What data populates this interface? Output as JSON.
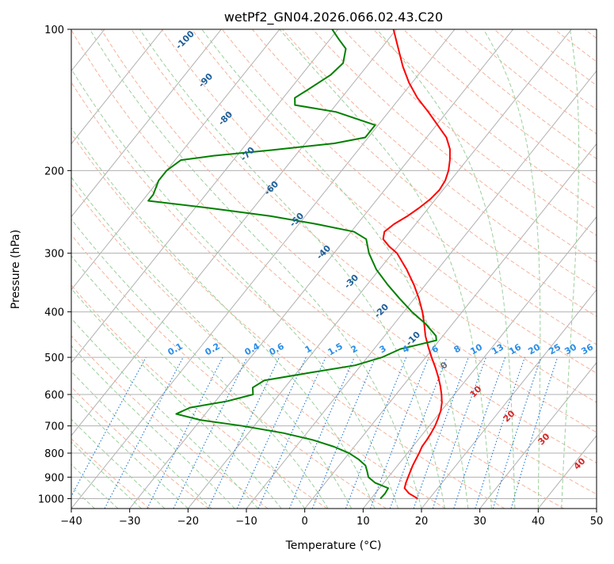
{
  "chart_data": {
    "type": "line",
    "title": "wetPf2_GN04.2026.066.02.43.C20",
    "xlabel": "Temperature (°C)",
    "ylabel": "Pressure (hPa)",
    "xlim": [
      -40,
      50
    ],
    "ylim": [
      1050,
      100
    ],
    "y_scale": "log",
    "skew": true,
    "grid": true,
    "x_ticks": [
      -40,
      -30,
      -20,
      -10,
      0,
      10,
      20,
      30,
      40,
      50
    ],
    "y_ticks": [
      1000,
      900,
      800,
      700,
      600,
      500,
      400,
      300,
      200,
      100
    ],
    "series": [
      {
        "color": "#ff0000",
        "points": [
          {
            "p": 1000,
            "t": 18.0
          },
          {
            "p": 975,
            "t": 15.8
          },
          {
            "p": 950,
            "t": 14.3
          },
          {
            "p": 925,
            "t": 13.8
          },
          {
            "p": 900,
            "t": 13.4
          },
          {
            "p": 875,
            "t": 13.0
          },
          {
            "p": 850,
            "t": 12.6
          },
          {
            "p": 825,
            "t": 12.3
          },
          {
            "p": 800,
            "t": 12.0
          },
          {
            "p": 775,
            "t": 11.6
          },
          {
            "p": 750,
            "t": 11.5
          },
          {
            "p": 725,
            "t": 11.3
          },
          {
            "p": 700,
            "t": 11.0
          },
          {
            "p": 675,
            "t": 10.5
          },
          {
            "p": 650,
            "t": 9.9
          },
          {
            "p": 625,
            "t": 9.0
          },
          {
            "p": 600,
            "t": 7.8
          },
          {
            "p": 575,
            "t": 6.4
          },
          {
            "p": 550,
            "t": 4.8
          },
          {
            "p": 525,
            "t": 3.0
          },
          {
            "p": 500,
            "t": 1.0
          },
          {
            "p": 475,
            "t": -1.0
          },
          {
            "p": 450,
            "t": -3.0
          },
          {
            "p": 425,
            "t": -4.8
          },
          {
            "p": 400,
            "t": -6.8
          },
          {
            "p": 375,
            "t": -9.2
          },
          {
            "p": 350,
            "t": -12.0
          },
          {
            "p": 325,
            "t": -15.3
          },
          {
            "p": 300,
            "t": -19.2
          },
          {
            "p": 290,
            "t": -21.5
          },
          {
            "p": 280,
            "t": -23.5
          },
          {
            "p": 270,
            "t": -24.3
          },
          {
            "p": 260,
            "t": -23.7
          },
          {
            "p": 250,
            "t": -22.5
          },
          {
            "p": 240,
            "t": -21.6
          },
          {
            "p": 230,
            "t": -20.9
          },
          {
            "p": 220,
            "t": -20.6
          },
          {
            "p": 210,
            "t": -20.9
          },
          {
            "p": 200,
            "t": -21.7
          },
          {
            "p": 190,
            "t": -22.9
          },
          {
            "p": 180,
            "t": -24.4
          },
          {
            "p": 170,
            "t": -26.6
          },
          {
            "p": 160,
            "t": -29.8
          },
          {
            "p": 150,
            "t": -33.2
          },
          {
            "p": 140,
            "t": -37.0
          },
          {
            "p": 130,
            "t": -40.5
          },
          {
            "p": 120,
            "t": -43.8
          },
          {
            "p": 110,
            "t": -47.0
          },
          {
            "p": 100,
            "t": -50.5
          }
        ]
      },
      {
        "color": "#008000",
        "points": [
          {
            "p": 1000,
            "t": 11.6
          },
          {
            "p": 975,
            "t": 11.7
          },
          {
            "p": 950,
            "t": 11.5
          },
          {
            "p": 925,
            "t": 8.5
          },
          {
            "p": 900,
            "t": 6.6
          },
          {
            "p": 875,
            "t": 5.6
          },
          {
            "p": 850,
            "t": 4.5
          },
          {
            "p": 825,
            "t": 2.5
          },
          {
            "p": 800,
            "t": 0.0
          },
          {
            "p": 775,
            "t": -3.5
          },
          {
            "p": 750,
            "t": -8.0
          },
          {
            "p": 725,
            "t": -14.0
          },
          {
            "p": 700,
            "t": -22.0
          },
          {
            "p": 680,
            "t": -30.0
          },
          {
            "p": 660,
            "t": -35.0
          },
          {
            "p": 640,
            "t": -33.5
          },
          {
            "p": 620,
            "t": -28.0
          },
          {
            "p": 600,
            "t": -24.5
          },
          {
            "p": 580,
            "t": -25.5
          },
          {
            "p": 560,
            "t": -24.5
          },
          {
            "p": 540,
            "t": -18.0
          },
          {
            "p": 520,
            "t": -11.0
          },
          {
            "p": 500,
            "t": -7.5
          },
          {
            "p": 480,
            "t": -5.5
          },
          {
            "p": 470,
            "t": -3.0
          },
          {
            "p": 460,
            "t": -0.5
          },
          {
            "p": 450,
            "t": -1.2
          },
          {
            "p": 425,
            "t": -4.5
          },
          {
            "p": 400,
            "t": -8.6
          },
          {
            "p": 375,
            "t": -12.5
          },
          {
            "p": 350,
            "t": -16.5
          },
          {
            "p": 325,
            "t": -20.5
          },
          {
            "p": 300,
            "t": -24.0
          },
          {
            "p": 280,
            "t": -26.4
          },
          {
            "p": 270,
            "t": -29.5
          },
          {
            "p": 260,
            "t": -37.0
          },
          {
            "p": 250,
            "t": -46.0
          },
          {
            "p": 240,
            "t": -58.0
          },
          {
            "p": 232,
            "t": -69.0
          },
          {
            "p": 225,
            "t": -69.0
          },
          {
            "p": 210,
            "t": -70.0
          },
          {
            "p": 200,
            "t": -70.0
          },
          {
            "p": 190,
            "t": -69.0
          },
          {
            "p": 186,
            "t": -64.0
          },
          {
            "p": 181,
            "t": -55.0
          },
          {
            "p": 175,
            "t": -45.0
          },
          {
            "p": 170,
            "t": -40.5
          },
          {
            "p": 160,
            "t": -40.5
          },
          {
            "p": 150,
            "t": -49.0
          },
          {
            "p": 145,
            "t": -57.0
          },
          {
            "p": 140,
            "t": -58.0
          },
          {
            "p": 135,
            "t": -57.0
          },
          {
            "p": 125,
            "t": -55.0
          },
          {
            "p": 118,
            "t": -54.5
          },
          {
            "p": 110,
            "t": -56.0
          },
          {
            "p": 105,
            "t": -58.5
          },
          {
            "p": 102,
            "t": -60.0
          },
          {
            "p": 100,
            "t": -61.0
          }
        ]
      }
    ],
    "dry_adiabat_labels": [
      "-100",
      "-90",
      "-80",
      "-70",
      "-60",
      "-50",
      "-40",
      "-30",
      "-20",
      "-10"
    ],
    "mixing_ratio_labels": [
      "0.1",
      "0.2",
      "0.4",
      "0.6",
      "1",
      "1.5",
      "2",
      "3",
      "4",
      "6",
      "8",
      "10",
      "13",
      "16",
      "20",
      "25",
      "30",
      "36"
    ],
    "moist_adiabat_labels": [
      "0",
      "10",
      "20",
      "30",
      "40"
    ],
    "colors": {
      "isotherm": "#b0b0b0",
      "dry_adiabat": "#f4b39c",
      "moist_adiabat": "#9ccf9c",
      "mixing_ratio": "#1f77d4",
      "dry_label": "#1f5f99",
      "mixing_label": "#2a8ee8",
      "moist_label": "#d62728",
      "moist_zero_label": "#707070"
    }
  }
}
